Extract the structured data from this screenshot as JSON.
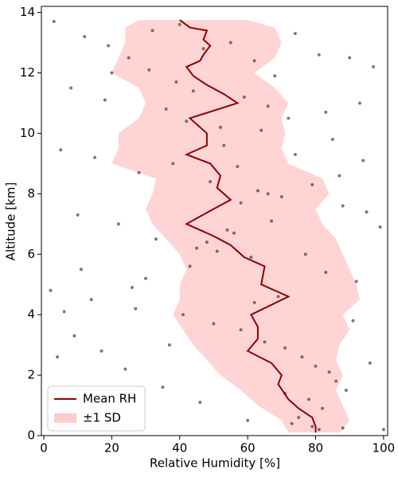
{
  "chart_data": {
    "type": "profile",
    "xlabel": "Relative Humidity [%]",
    "ylabel": "Altitude [km]",
    "xlim": [
      -0.7,
      101.2
    ],
    "ylim": [
      0,
      14.2
    ],
    "xticks": [
      0,
      20,
      40,
      60,
      80,
      100
    ],
    "yticks": [
      0,
      2,
      4,
      6,
      8,
      10,
      12,
      14
    ],
    "legend": "lower left",
    "series": [
      {
        "name": "Mean RH",
        "type": "line",
        "color": "#8b0000",
        "x": [
          80,
          80,
          79,
          75,
          72,
          69,
          70,
          67,
          60,
          63,
          63,
          61,
          72,
          64,
          65,
          59,
          55,
          50,
          42,
          50,
          55,
          51,
          52,
          49,
          42,
          48,
          48,
          43,
          57,
          53,
          48,
          44,
          42,
          46,
          47,
          49,
          47,
          48,
          43,
          40
        ],
        "y": [
          0.1,
          0.3,
          0.6,
          0.9,
          1.2,
          1.7,
          2.0,
          2.4,
          2.8,
          3.2,
          3.6,
          4.0,
          4.6,
          5.0,
          5.6,
          5.9,
          6.3,
          6.6,
          7.0,
          7.5,
          7.8,
          8.2,
          8.6,
          9.0,
          9.3,
          9.6,
          10.0,
          10.5,
          11.0,
          11.3,
          11.6,
          11.9,
          12.2,
          12.4,
          12.6,
          12.9,
          13.1,
          13.4,
          13.5,
          13.75
        ]
      },
      {
        "name": "±1 SD",
        "type": "band",
        "color": "#ffcccc",
        "y": [
          0.1,
          0.5,
          1.0,
          1.5,
          2.0,
          2.5,
          3.0,
          3.5,
          4.0,
          4.5,
          5.0,
          5.5,
          6.0,
          6.5,
          7.0,
          7.5,
          8.0,
          8.5,
          9.0,
          9.5,
          10.0,
          10.5,
          11.0,
          11.5,
          12.0,
          12.5,
          13.0,
          13.5,
          13.75
        ],
        "lower": [
          72,
          70,
          63,
          58,
          52,
          48,
          44,
          41,
          38,
          40,
          40,
          42,
          40,
          36,
          32,
          30,
          32,
          33,
          20,
          22,
          22,
          28,
          30,
          28,
          20,
          22,
          24,
          24,
          28
        ],
        "upper": [
          87,
          90,
          88,
          86,
          88,
          86,
          87,
          90,
          88,
          93,
          92,
          90,
          88,
          86,
          82,
          80,
          84,
          82,
          72,
          70,
          71,
          70,
          72,
          68,
          62,
          68,
          70,
          68,
          60
        ]
      },
      {
        "type": "scatter",
        "color": "#333333",
        "x": [
          3,
          12,
          25,
          31,
          40,
          47,
          55,
          62,
          68,
          74,
          81,
          90,
          97,
          8,
          18,
          36,
          44,
          52,
          59,
          66,
          72,
          85,
          94,
          5,
          15,
          28,
          38,
          49,
          57,
          63,
          70,
          79,
          88,
          99,
          10,
          22,
          33,
          45,
          54,
          61,
          77,
          83,
          92,
          2,
          14,
          27,
          41,
          50,
          58,
          65,
          71,
          76,
          80,
          84,
          86,
          89,
          78,
          82,
          75,
          73,
          79,
          81,
          88,
          60,
          46,
          35,
          24,
          17,
          9,
          6,
          30,
          43,
          56,
          67,
          69,
          91,
          96,
          100,
          20,
          39,
          53,
          64,
          87,
          95,
          11,
          26,
          37,
          48,
          58,
          66,
          74,
          83,
          93,
          4,
          19,
          32,
          42,
          51,
          62,
          71
        ],
        "y": [
          13.7,
          13.2,
          12.5,
          12.1,
          13.6,
          12.8,
          13.0,
          12.4,
          11.9,
          13.3,
          12.6,
          12.5,
          12.2,
          11.5,
          11.1,
          10.8,
          11.4,
          10.2,
          11.2,
          10.9,
          10.5,
          9.8,
          9.1,
          9.45,
          9.2,
          8.7,
          9.0,
          8.4,
          8.9,
          8.1,
          7.9,
          8.3,
          7.6,
          6.9,
          7.3,
          7.0,
          6.5,
          6.2,
          6.8,
          5.9,
          6.0,
          5.4,
          5.1,
          4.8,
          4.5,
          4.2,
          4.0,
          3.7,
          3.5,
          3.1,
          2.9,
          2.6,
          2.3,
          2.1,
          1.8,
          1.5,
          1.2,
          0.9,
          0.6,
          0.4,
          0.3,
          0.2,
          0.25,
          0.5,
          1.1,
          1.6,
          2.2,
          2.8,
          3.3,
          4.1,
          5.2,
          5.6,
          6.7,
          7.1,
          4.6,
          3.8,
          2.4,
          0.2,
          12.0,
          11.7,
          9.6,
          10.1,
          8.6,
          7.4,
          5.5,
          4.9,
          3.0,
          6.4,
          7.7,
          8.0,
          9.3,
          10.7,
          11.0,
          2.6,
          12.9,
          13.4,
          10.4,
          6.1,
          4.4,
          1.4
        ]
      }
    ]
  }
}
